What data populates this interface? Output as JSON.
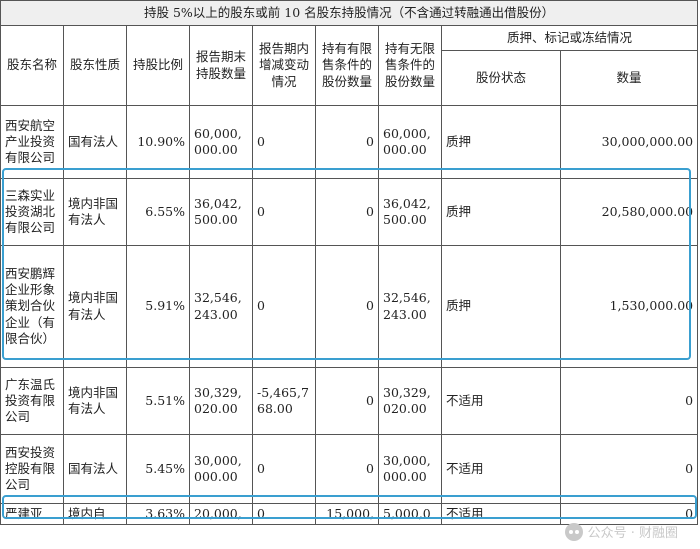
{
  "table": {
    "title": "持股 5%以上的股东或前 10 名股东持股情况（不含通过转融通出借股份）",
    "headers": {
      "name": "股东名称",
      "nature": "股东性质",
      "ratio": "持股比例",
      "period_end_qty": "报告期末持股数量",
      "change": "报告期内增减变动情况",
      "restricted": "持有有限售条件的股份数量",
      "unrestricted": "持有无限售条件的股份数量",
      "pledge_group": "质押、标记或冻结情况",
      "pledge_status": "股份状态",
      "pledge_qty": "数量"
    },
    "rows": [
      {
        "name": "西安航空产业投资有限公司",
        "nature": "国有法人",
        "ratio": "10.90%",
        "qty": "60,000,000.00",
        "change": "0",
        "restricted": "0",
        "unrestricted": "60,000,000.00",
        "status": "质押",
        "pledge_qty": "30,000,000.00"
      },
      {
        "name": "三森实业投资湖北有限公司",
        "nature": "境内非国有法人",
        "ratio": "6.55%",
        "qty": "36,042,500.00",
        "change": "0",
        "restricted": "0",
        "unrestricted": "36,042,500.00",
        "status": "质押",
        "pledge_qty": "20,580,000.00"
      },
      {
        "name": "西安鹏辉企业形象策划合伙企业（有限合伙）",
        "nature": "境内非国有法人",
        "ratio": "5.91%",
        "qty": "32,546,243.00",
        "change": "0",
        "restricted": "0",
        "unrestricted": "32,546,243.00",
        "status": "质押",
        "pledge_qty": "1,530,000.00"
      },
      {
        "name": "广东温氏投资有限公司",
        "nature": "境内非国有法人",
        "ratio": "5.51%",
        "qty": "30,329,020.00",
        "change": "-5,465,768.00",
        "restricted": "0",
        "unrestricted": "30,329,020.00",
        "status": "不适用",
        "pledge_qty": "0"
      },
      {
        "name": "西安投资控股有限公司",
        "nature": "国有法人",
        "ratio": "5.45%",
        "qty": "30,000,000.00",
        "change": "0",
        "restricted": "0",
        "unrestricted": "30,000,000.00",
        "status": "不适用",
        "pledge_qty": "0"
      },
      {
        "name": "严建亚",
        "nature": "境内自",
        "ratio": "3.63%",
        "qty": "20,000,",
        "change": "0",
        "restricted": "15,000,",
        "unrestricted": "5,000,0",
        "status": "不适用",
        "pledge_qty": "0"
      }
    ]
  },
  "watermark": {
    "text": "公众号 · 财融圈",
    "icon": "wechat-icon"
  },
  "highlight_color": "#3a9fd0"
}
